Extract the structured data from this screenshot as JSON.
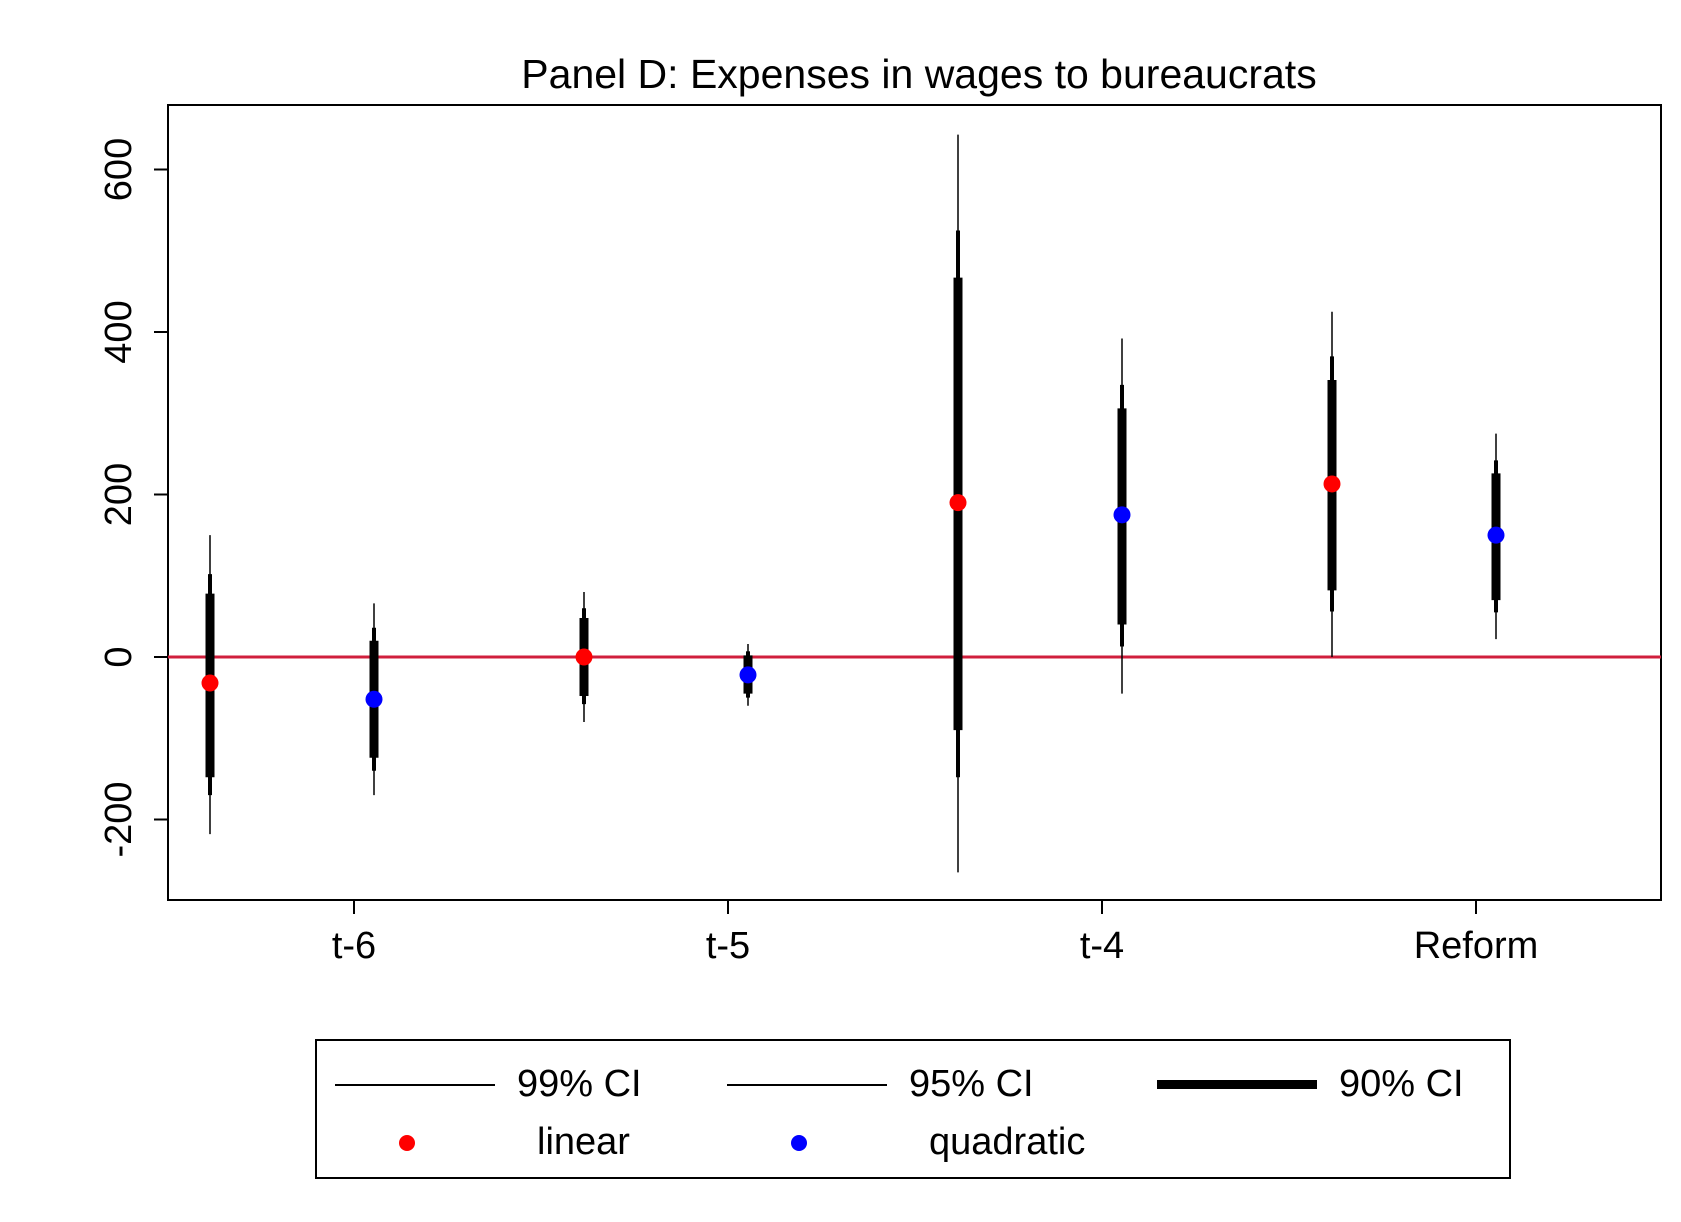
{
  "chart_data": {
    "type": "scatter",
    "title": "Panel D: Expenses in wages to bureaucrats",
    "xlabel": "",
    "ylabel": "",
    "ylim": [
      -300,
      680
    ],
    "yticks": [
      -200,
      0,
      200,
      400,
      600
    ],
    "categories": [
      "t-6",
      "t-5",
      "t-4",
      "Reform"
    ],
    "reference_line": {
      "y": 0,
      "color": "#d01f3c"
    },
    "grid": false,
    "legend_position": "bottom",
    "series": [
      {
        "name": "linear",
        "color": "#ff0000",
        "points": [
          {
            "category": "t-6",
            "estimate": -32,
            "ci90": [
              -148,
              78
            ],
            "ci95": [
              -170,
              102
            ],
            "ci99": [
              -218,
              150
            ]
          },
          {
            "category": "t-5",
            "estimate": 0,
            "ci90": [
              -48,
              48
            ],
            "ci95": [
              -58,
              60
            ],
            "ci99": [
              -80,
              80
            ]
          },
          {
            "category": "t-4",
            "estimate": 190,
            "ci90": [
              -90,
              467
            ],
            "ci95": [
              -148,
              525
            ],
            "ci99": [
              -265,
              643
            ]
          },
          {
            "category": "Reform",
            "estimate": 213,
            "ci90": [
              82,
              341
            ],
            "ci95": [
              56,
              370
            ],
            "ci99": [
              0,
              425
            ]
          }
        ]
      },
      {
        "name": "quadratic",
        "color": "#0000ff",
        "points": [
          {
            "category": "t-6",
            "estimate": -52,
            "ci90": [
              -124,
              20
            ],
            "ci95": [
              -140,
              36
            ],
            "ci99": [
              -170,
              66
            ]
          },
          {
            "category": "t-5",
            "estimate": -22,
            "ci90": [
              -45,
              2
            ],
            "ci95": [
              -50,
              7
            ],
            "ci99": [
              -60,
              16
            ]
          },
          {
            "category": "t-4",
            "estimate": 175,
            "ci90": [
              40,
              306
            ],
            "ci95": [
              13,
              335
            ],
            "ci99": [
              -45,
              392
            ]
          },
          {
            "category": "Reform",
            "estimate": 150,
            "ci90": [
              70,
              226
            ],
            "ci95": [
              55,
              242
            ],
            "ci99": [
              22,
              275
            ]
          }
        ]
      }
    ]
  },
  "legend": {
    "ci99": "99% CI",
    "ci95": "95% CI",
    "ci90": "90% CI",
    "linear": "linear",
    "quadratic": "quadratic"
  }
}
